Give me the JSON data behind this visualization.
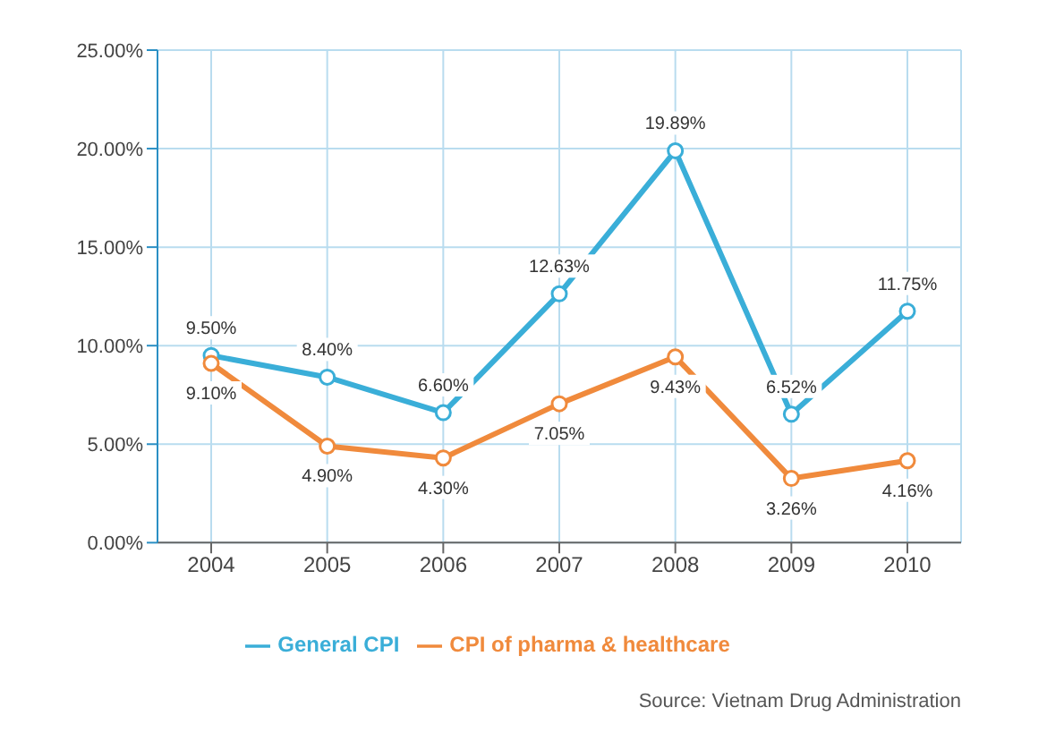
{
  "chart_data": {
    "type": "line",
    "categories": [
      "2004",
      "2005",
      "2006",
      "2007",
      "2008",
      "2009",
      "2010"
    ],
    "series": [
      {
        "name": "General CPI",
        "color": "#3aaed8",
        "values": [
          9.5,
          8.4,
          6.6,
          12.63,
          19.89,
          6.52,
          11.75
        ],
        "value_labels": [
          "9.50%",
          "8.40%",
          "6.60%",
          "12.63%",
          "19.89%",
          "6.52%",
          "11.75%"
        ]
      },
      {
        "name": "CPI of pharma & healthcare",
        "color": "#f08a3c",
        "values": [
          9.1,
          4.9,
          4.3,
          7.05,
          9.43,
          3.26,
          4.16
        ],
        "value_labels": [
          "9.10%",
          "4.90%",
          "4.30%",
          "7.05%",
          "9.43%",
          "3.26%",
          "4.16%"
        ]
      }
    ],
    "ylim": [
      0,
      25
    ],
    "yticks": [
      {
        "value": 0,
        "label": "0.00%"
      },
      {
        "value": 5,
        "label": "5.00%"
      },
      {
        "value": 10,
        "label": "10.00%"
      },
      {
        "value": 15,
        "label": "15.00%"
      },
      {
        "value": 20,
        "label": "20.00%"
      },
      {
        "value": 25,
        "label": "25.00%"
      }
    ],
    "grid": true,
    "legend": "bottom",
    "marker": "circle",
    "line_style": "solid",
    "annotations": [
      "Source: Vietnam Drug Administration"
    ]
  }
}
